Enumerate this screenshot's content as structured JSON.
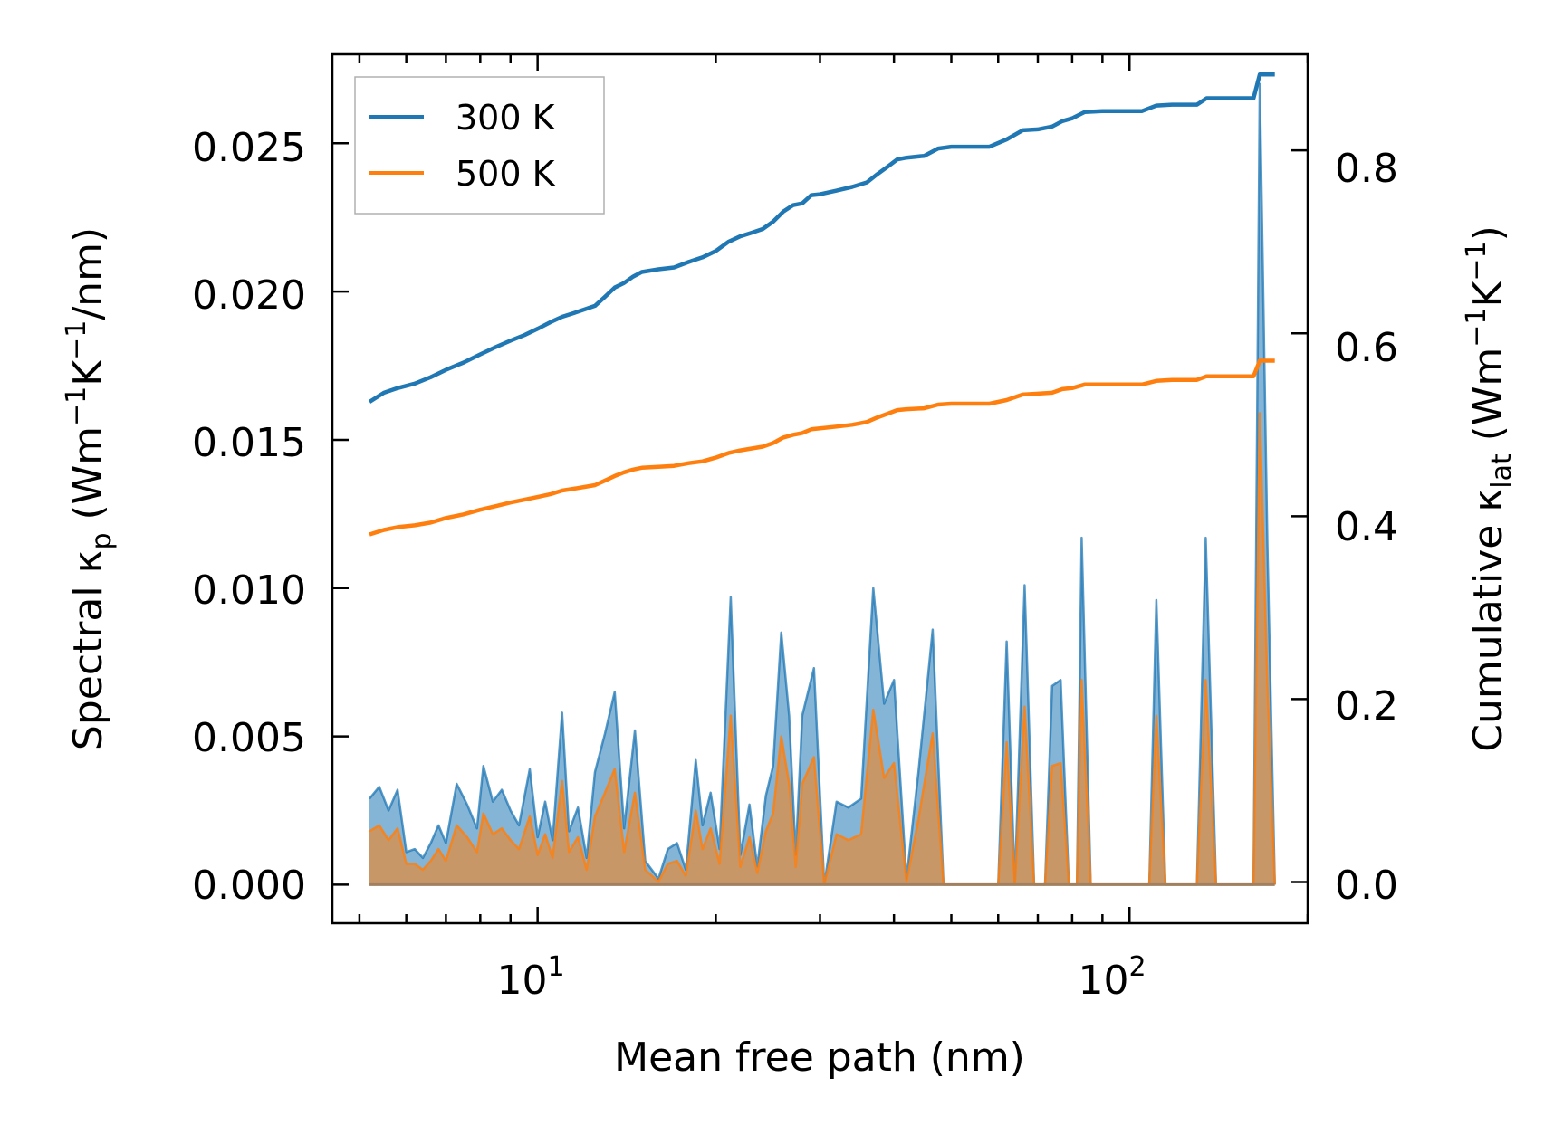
{
  "chart_data": {
    "type": "line",
    "xscale": "log",
    "xlim": [
      4.5,
      200
    ],
    "xlabel": "Mean free path (nm)",
    "x_ticks": [
      {
        "value": 10,
        "base": "10",
        "exp": "1"
      },
      {
        "value": 100,
        "base": "10",
        "exp": "2"
      }
    ],
    "left_axis": {
      "label_parts": [
        "Spectral κ",
        "p",
        " (Wm",
        "−1",
        "K",
        "−1",
        "/nm)"
      ],
      "ylim": [
        -0.0013,
        0.028
      ],
      "ticks": [
        "0.000",
        "0.005",
        "0.010",
        "0.015",
        "0.020",
        "0.025"
      ]
    },
    "right_axis": {
      "label_parts": [
        "Cumulative κ",
        "lat",
        " (Wm",
        "−1",
        "K",
        "−1",
        ")"
      ],
      "ylim": [
        -0.045,
        0.905
      ],
      "ticks": [
        "0.0",
        "0.2",
        "0.4",
        "0.6",
        "0.8"
      ]
    },
    "legend": {
      "location": "upper-left",
      "entries": [
        "300 K",
        "500 K"
      ]
    },
    "colors": {
      "s300": "#1f77b4",
      "s500": "#ff7f0e"
    },
    "spectral_series": [
      {
        "name": "300 K spectral",
        "points": [
          [
            5.2,
            0.0029
          ],
          [
            5.4,
            0.0033
          ],
          [
            5.6,
            0.0025
          ],
          [
            5.8,
            0.0032
          ],
          [
            6.0,
            0.0011
          ],
          [
            6.2,
            0.0012
          ],
          [
            6.4,
            0.0009
          ],
          [
            6.6,
            0.0014
          ],
          [
            6.8,
            0.002
          ],
          [
            7.0,
            0.0014
          ],
          [
            7.3,
            0.0034
          ],
          [
            7.6,
            0.0027
          ],
          [
            7.9,
            0.0019
          ],
          [
            8.1,
            0.004
          ],
          [
            8.4,
            0.0028
          ],
          [
            8.7,
            0.0032
          ],
          [
            9.0,
            0.0025
          ],
          [
            9.3,
            0.002
          ],
          [
            9.7,
            0.0039
          ],
          [
            10.0,
            0.0016
          ],
          [
            10.3,
            0.0028
          ],
          [
            10.6,
            0.0015
          ],
          [
            11.0,
            0.0058
          ],
          [
            11.3,
            0.0018
          ],
          [
            11.7,
            0.0026
          ],
          [
            12.1,
            0.0009
          ],
          [
            12.5,
            0.0038
          ],
          [
            13.0,
            0.0051
          ],
          [
            13.5,
            0.0065
          ],
          [
            14.0,
            0.0019
          ],
          [
            14.6,
            0.0052
          ],
          [
            15.2,
            0.0008
          ],
          [
            16.0,
            0.0002
          ],
          [
            16.6,
            0.0012
          ],
          [
            17.2,
            0.0014
          ],
          [
            17.8,
            0.0005
          ],
          [
            18.5,
            0.0042
          ],
          [
            19.0,
            0.002
          ],
          [
            19.6,
            0.0031
          ],
          [
            20.3,
            0.0012
          ],
          [
            21.2,
            0.0097
          ],
          [
            22.0,
            0.001
          ],
          [
            22.8,
            0.0027
          ],
          [
            23.5,
            0.0006
          ],
          [
            24.3,
            0.003
          ],
          [
            25.0,
            0.004
          ],
          [
            25.8,
            0.0085
          ],
          [
            26.6,
            0.0057
          ],
          [
            27.3,
            0.001
          ],
          [
            28.0,
            0.0057
          ],
          [
            29.3,
            0.0073
          ],
          [
            30.5,
            0.0
          ],
          [
            32.0,
            0.0028
          ],
          [
            33.5,
            0.0026
          ],
          [
            35.2,
            0.0029
          ],
          [
            36.9,
            0.01
          ],
          [
            38.5,
            0.0061
          ],
          [
            40.0,
            0.0069
          ],
          [
            42.0,
            0.0002
          ],
          [
            44.0,
            0.0038
          ],
          [
            46.5,
            0.0086
          ],
          [
            48.5,
            0.0
          ],
          [
            60.0,
            0.0
          ],
          [
            62.0,
            0.0082
          ],
          [
            64.0,
            0.0
          ],
          [
            66.5,
            0.0101
          ],
          [
            69.0,
            0.0
          ],
          [
            72.0,
            0.0
          ],
          [
            74.0,
            0.0067
          ],
          [
            76.5,
            0.0069
          ],
          [
            79.0,
            0.0
          ],
          [
            81.5,
            0.0
          ],
          [
            83.0,
            0.0117
          ],
          [
            86.0,
            0.0
          ],
          [
            108.0,
            0.0
          ],
          [
            111.0,
            0.0096
          ],
          [
            115.0,
            0.0
          ],
          [
            130.0,
            0.0
          ],
          [
            134.5,
            0.0117
          ],
          [
            140.0,
            0.0
          ],
          [
            162.0,
            0.0
          ],
          [
            166.0,
            0.027
          ],
          [
            171.0,
            0.0115
          ],
          [
            176.0,
            0.0
          ]
        ]
      },
      {
        "name": "500 K spectral",
        "points": [
          [
            5.2,
            0.0018
          ],
          [
            5.4,
            0.002
          ],
          [
            5.6,
            0.0015
          ],
          [
            5.8,
            0.0019
          ],
          [
            6.0,
            0.0007
          ],
          [
            6.2,
            0.0007
          ],
          [
            6.4,
            0.0005
          ],
          [
            6.6,
            0.0008
          ],
          [
            6.8,
            0.0012
          ],
          [
            7.0,
            0.0008
          ],
          [
            7.3,
            0.002
          ],
          [
            7.6,
            0.0016
          ],
          [
            7.9,
            0.0011
          ],
          [
            8.1,
            0.0024
          ],
          [
            8.4,
            0.0017
          ],
          [
            8.7,
            0.0019
          ],
          [
            9.0,
            0.0015
          ],
          [
            9.3,
            0.0012
          ],
          [
            9.7,
            0.0023
          ],
          [
            10.0,
            0.001
          ],
          [
            10.3,
            0.0017
          ],
          [
            10.6,
            0.0009
          ],
          [
            11.0,
            0.0035
          ],
          [
            11.3,
            0.0011
          ],
          [
            11.7,
            0.0016
          ],
          [
            12.1,
            0.0005
          ],
          [
            12.5,
            0.0023
          ],
          [
            13.0,
            0.0031
          ],
          [
            13.5,
            0.0039
          ],
          [
            14.0,
            0.0011
          ],
          [
            14.6,
            0.0031
          ],
          [
            15.2,
            0.0005
          ],
          [
            16.0,
            0.0001
          ],
          [
            16.6,
            0.0007
          ],
          [
            17.2,
            0.0008
          ],
          [
            17.8,
            0.0003
          ],
          [
            18.5,
            0.0025
          ],
          [
            19.0,
            0.0012
          ],
          [
            19.6,
            0.0019
          ],
          [
            20.3,
            0.0007
          ],
          [
            21.2,
            0.0057
          ],
          [
            22.0,
            0.0006
          ],
          [
            22.8,
            0.0016
          ],
          [
            23.5,
            0.0004
          ],
          [
            24.3,
            0.0018
          ],
          [
            25.0,
            0.0024
          ],
          [
            25.8,
            0.005
          ],
          [
            26.6,
            0.0034
          ],
          [
            27.3,
            0.0006
          ],
          [
            28.0,
            0.0034
          ],
          [
            29.3,
            0.0043
          ],
          [
            30.5,
            0.0
          ],
          [
            32.0,
            0.0017
          ],
          [
            33.5,
            0.0015
          ],
          [
            35.2,
            0.0017
          ],
          [
            36.9,
            0.0059
          ],
          [
            38.5,
            0.0036
          ],
          [
            40.0,
            0.0041
          ],
          [
            42.0,
            0.0001
          ],
          [
            44.0,
            0.0022
          ],
          [
            46.5,
            0.0051
          ],
          [
            48.5,
            0.0
          ],
          [
            60.0,
            0.0
          ],
          [
            62.0,
            0.0048
          ],
          [
            64.0,
            0.0
          ],
          [
            66.5,
            0.006
          ],
          [
            69.0,
            0.0
          ],
          [
            72.0,
            0.0
          ],
          [
            74.0,
            0.004
          ],
          [
            76.5,
            0.0041
          ],
          [
            79.0,
            0.0
          ],
          [
            81.5,
            0.0
          ],
          [
            83.0,
            0.0069
          ],
          [
            86.0,
            0.0
          ],
          [
            108.0,
            0.0
          ],
          [
            111.0,
            0.0057
          ],
          [
            115.0,
            0.0
          ],
          [
            130.0,
            0.0
          ],
          [
            134.5,
            0.0069
          ],
          [
            140.0,
            0.0
          ],
          [
            162.0,
            0.0
          ],
          [
            166.0,
            0.0159
          ],
          [
            171.0,
            0.0068
          ],
          [
            176.0,
            0.0
          ]
        ]
      }
    ],
    "cumulative_series": [
      {
        "name": "300 K",
        "points": [
          [
            5.2,
            0.525
          ],
          [
            5.5,
            0.535
          ],
          [
            5.8,
            0.54
          ],
          [
            6.2,
            0.545
          ],
          [
            6.6,
            0.552
          ],
          [
            7.0,
            0.56
          ],
          [
            7.5,
            0.568
          ],
          [
            8.0,
            0.577
          ],
          [
            8.5,
            0.585
          ],
          [
            9.0,
            0.592
          ],
          [
            9.5,
            0.598
          ],
          [
            10.0,
            0.605
          ],
          [
            10.5,
            0.612
          ],
          [
            11.0,
            0.618
          ],
          [
            11.5,
            0.622
          ],
          [
            12.0,
            0.626
          ],
          [
            12.5,
            0.63
          ],
          [
            13.0,
            0.64
          ],
          [
            13.5,
            0.65
          ],
          [
            14.0,
            0.655
          ],
          [
            14.5,
            0.662
          ],
          [
            15.0,
            0.667
          ],
          [
            16.0,
            0.67
          ],
          [
            17.0,
            0.672
          ],
          [
            18.0,
            0.678
          ],
          [
            19.0,
            0.683
          ],
          [
            20.0,
            0.69
          ],
          [
            21.0,
            0.7
          ],
          [
            22.0,
            0.706
          ],
          [
            23.0,
            0.71
          ],
          [
            24.0,
            0.714
          ],
          [
            25.0,
            0.722
          ],
          [
            26.0,
            0.733
          ],
          [
            27.0,
            0.74
          ],
          [
            28.0,
            0.742
          ],
          [
            29.0,
            0.751
          ],
          [
            30.0,
            0.752
          ],
          [
            32.0,
            0.756
          ],
          [
            34.0,
            0.76
          ],
          [
            36.0,
            0.765
          ],
          [
            37.5,
            0.774
          ],
          [
            39.0,
            0.782
          ],
          [
            40.5,
            0.79
          ],
          [
            42.0,
            0.792
          ],
          [
            45.0,
            0.794
          ],
          [
            47.5,
            0.802
          ],
          [
            50.0,
            0.804
          ],
          [
            58.0,
            0.804
          ],
          [
            62.0,
            0.812
          ],
          [
            66.0,
            0.822
          ],
          [
            70.0,
            0.823
          ],
          [
            74.0,
            0.826
          ],
          [
            77.0,
            0.832
          ],
          [
            80.0,
            0.835
          ],
          [
            84.0,
            0.842
          ],
          [
            90.0,
            0.843
          ],
          [
            105.0,
            0.843
          ],
          [
            111.0,
            0.849
          ],
          [
            118.0,
            0.85
          ],
          [
            130.0,
            0.85
          ],
          [
            135.0,
            0.857
          ],
          [
            145.0,
            0.857
          ],
          [
            162.0,
            0.857
          ],
          [
            166.0,
            0.883
          ],
          [
            176.0,
            0.883
          ]
        ]
      },
      {
        "name": "500 K",
        "points": [
          [
            5.2,
            0.38
          ],
          [
            5.5,
            0.385
          ],
          [
            5.8,
            0.388
          ],
          [
            6.2,
            0.39
          ],
          [
            6.6,
            0.393
          ],
          [
            7.0,
            0.398
          ],
          [
            7.5,
            0.402
          ],
          [
            8.0,
            0.407
          ],
          [
            8.5,
            0.411
          ],
          [
            9.0,
            0.415
          ],
          [
            9.5,
            0.418
          ],
          [
            10.0,
            0.421
          ],
          [
            10.5,
            0.424
          ],
          [
            11.0,
            0.428
          ],
          [
            11.5,
            0.43
          ],
          [
            12.0,
            0.432
          ],
          [
            12.5,
            0.434
          ],
          [
            13.0,
            0.439
          ],
          [
            13.5,
            0.444
          ],
          [
            14.0,
            0.448
          ],
          [
            14.5,
            0.451
          ],
          [
            15.0,
            0.453
          ],
          [
            16.0,
            0.454
          ],
          [
            17.0,
            0.455
          ],
          [
            18.0,
            0.458
          ],
          [
            19.0,
            0.46
          ],
          [
            20.0,
            0.464
          ],
          [
            21.0,
            0.469
          ],
          [
            22.0,
            0.472
          ],
          [
            23.0,
            0.474
          ],
          [
            24.0,
            0.476
          ],
          [
            25.0,
            0.48
          ],
          [
            26.0,
            0.486
          ],
          [
            27.0,
            0.489
          ],
          [
            28.0,
            0.491
          ],
          [
            29.0,
            0.495
          ],
          [
            30.0,
            0.496
          ],
          [
            32.0,
            0.498
          ],
          [
            34.0,
            0.5
          ],
          [
            36.0,
            0.503
          ],
          [
            37.5,
            0.508
          ],
          [
            39.0,
            0.512
          ],
          [
            40.5,
            0.516
          ],
          [
            42.0,
            0.517
          ],
          [
            45.0,
            0.518
          ],
          [
            47.5,
            0.522
          ],
          [
            50.0,
            0.523
          ],
          [
            58.0,
            0.523
          ],
          [
            62.0,
            0.527
          ],
          [
            66.0,
            0.533
          ],
          [
            70.0,
            0.534
          ],
          [
            74.0,
            0.535
          ],
          [
            77.0,
            0.539
          ],
          [
            80.0,
            0.54
          ],
          [
            84.0,
            0.544
          ],
          [
            90.0,
            0.544
          ],
          [
            105.0,
            0.544
          ],
          [
            111.0,
            0.548
          ],
          [
            118.0,
            0.549
          ],
          [
            130.0,
            0.549
          ],
          [
            135.0,
            0.553
          ],
          [
            145.0,
            0.553
          ],
          [
            162.0,
            0.553
          ],
          [
            166.0,
            0.57
          ],
          [
            176.0,
            0.57
          ]
        ]
      }
    ]
  }
}
